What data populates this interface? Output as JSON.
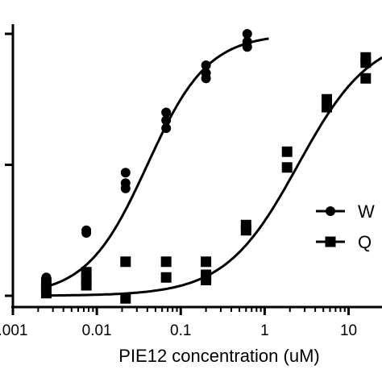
{
  "chart_data": {
    "type": "scatter",
    "xscale": "log",
    "xlim": [
      0.001,
      25
    ],
    "ylim": [
      0,
      1
    ],
    "xlabel": "PIE12 concentration (uM)",
    "xticks": [
      0.001,
      0.01,
      0.1,
      1,
      10
    ],
    "xtick_labels": [
      ".001",
      "0.01",
      "0.1",
      "1",
      "10"
    ],
    "grid": false,
    "legend_placement": "right",
    "series": [
      {
        "name": "W",
        "marker": "circle",
        "points": [
          [
            0.0025,
            0.07
          ],
          [
            0.0025,
            0.06
          ],
          [
            0.0075,
            0.24
          ],
          [
            0.0075,
            0.25
          ],
          [
            0.022,
            0.47
          ],
          [
            0.022,
            0.43
          ],
          [
            0.022,
            0.41
          ],
          [
            0.067,
            0.7
          ],
          [
            0.067,
            0.67
          ],
          [
            0.067,
            0.64
          ],
          [
            0.2,
            0.88
          ],
          [
            0.2,
            0.85
          ],
          [
            0.2,
            0.83
          ],
          [
            0.62,
            1.0
          ],
          [
            0.62,
            0.97
          ],
          [
            0.62,
            0.95
          ]
        ],
        "fit": {
          "bottom": 0.0,
          "top": 1.0,
          "ec50": 0.04,
          "hill": 1.2
        }
      },
      {
        "name": "Q",
        "marker": "square",
        "points": [
          [
            0.0025,
            0.05
          ],
          [
            0.0025,
            0.03
          ],
          [
            0.0025,
            0.01
          ],
          [
            0.0075,
            0.09
          ],
          [
            0.0075,
            0.06
          ],
          [
            0.0075,
            0.04
          ],
          [
            0.022,
            0.13
          ],
          [
            0.022,
            -0.01
          ],
          [
            0.067,
            0.13
          ],
          [
            0.067,
            0.07
          ],
          [
            0.2,
            0.13
          ],
          [
            0.2,
            0.08
          ],
          [
            0.2,
            0.06
          ],
          [
            0.6,
            0.27
          ],
          [
            0.6,
            0.25
          ],
          [
            1.85,
            0.55
          ],
          [
            1.85,
            0.49
          ],
          [
            5.5,
            0.75
          ],
          [
            5.5,
            0.72
          ],
          [
            16,
            0.91
          ],
          [
            16,
            0.89
          ],
          [
            16,
            0.83
          ]
        ],
        "fit": {
          "bottom": 0.0,
          "top": 1.0,
          "ec50": 2.5,
          "hill": 1.0
        }
      }
    ]
  }
}
